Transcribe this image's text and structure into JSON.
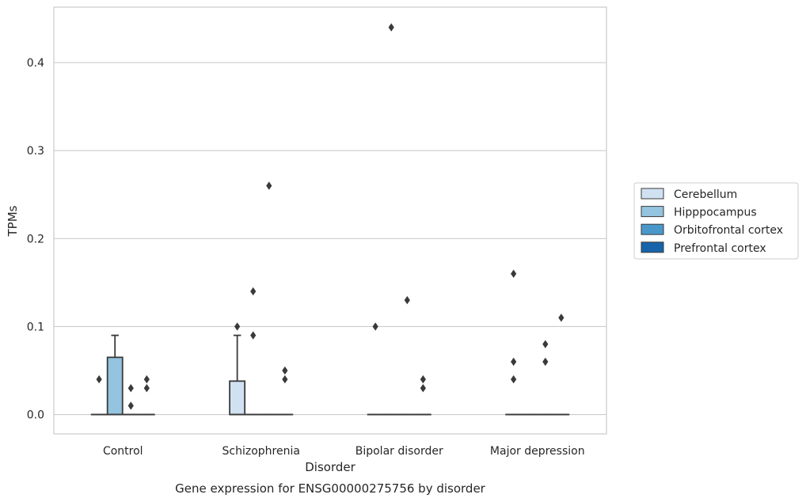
{
  "chart_data": {
    "type": "box",
    "title": "",
    "caption": "Gene expression for ENSG00000275756 by disorder",
    "xlabel": "Disorder",
    "ylabel": "TPMs",
    "ylim": [
      -0.022,
      0.463
    ],
    "yticks": [
      0.0,
      0.1,
      0.2,
      0.3,
      0.4
    ],
    "ytick_labels": [
      "0.0",
      "0.1",
      "0.2",
      "0.3",
      "0.4"
    ],
    "grid": "horizontal",
    "legend_position": "right",
    "categories": [
      "Control",
      "Schizophrenia",
      "Bipolar disorder",
      "Major depression"
    ],
    "series": [
      {
        "name": "Cerebellum",
        "color": "#d0e1f2",
        "boxes": [
          {
            "q1": 0,
            "median": 0,
            "q3": 0,
            "whisker_low": 0,
            "whisker_high": 0,
            "outliers": [
              0.04
            ]
          },
          {
            "q1": 0,
            "median": 0,
            "q3": 0.038,
            "whisker_low": 0,
            "whisker_high": 0.09,
            "outliers": [
              0.1
            ]
          },
          {
            "q1": 0,
            "median": 0,
            "q3": 0,
            "whisker_low": 0,
            "whisker_high": 0,
            "outliers": [
              0.1
            ]
          },
          {
            "q1": 0,
            "median": 0,
            "q3": 0,
            "whisker_low": 0,
            "whisker_high": 0,
            "outliers": [
              0.04,
              0.06,
              0.16
            ]
          }
        ]
      },
      {
        "name": "Hipppocampus",
        "color": "#94c4df",
        "boxes": [
          {
            "q1": 0,
            "median": 0,
            "q3": 0.065,
            "whisker_low": 0,
            "whisker_high": 0.09,
            "outliers": []
          },
          {
            "q1": 0,
            "median": 0,
            "q3": 0,
            "whisker_low": 0,
            "whisker_high": 0,
            "outliers": [
              0.09,
              0.14
            ]
          },
          {
            "q1": 0,
            "median": 0,
            "q3": 0,
            "whisker_low": 0,
            "whisker_high": 0,
            "outliers": [
              0.44
            ]
          },
          {
            "q1": 0,
            "median": 0,
            "q3": 0,
            "whisker_low": 0,
            "whisker_high": 0,
            "outliers": []
          }
        ]
      },
      {
        "name": "Orbitofrontal cortex",
        "color": "#4a98c9",
        "boxes": [
          {
            "q1": 0,
            "median": 0,
            "q3": 0,
            "whisker_low": 0,
            "whisker_high": 0,
            "outliers": [
              0.01,
              0.03
            ]
          },
          {
            "q1": 0,
            "median": 0,
            "q3": 0,
            "whisker_low": 0,
            "whisker_high": 0,
            "outliers": [
              0.26
            ]
          },
          {
            "q1": 0,
            "median": 0,
            "q3": 0,
            "whisker_low": 0,
            "whisker_high": 0,
            "outliers": [
              0.13
            ]
          },
          {
            "q1": 0,
            "median": 0,
            "q3": 0,
            "whisker_low": 0,
            "whisker_high": 0,
            "outliers": [
              0.06,
              0.08
            ]
          }
        ]
      },
      {
        "name": "Prefrontal cortex",
        "color": "#1764ab",
        "boxes": [
          {
            "q1": 0,
            "median": 0,
            "q3": 0,
            "whisker_low": 0,
            "whisker_high": 0,
            "outliers": [
              0.03,
              0.04
            ]
          },
          {
            "q1": 0,
            "median": 0,
            "q3": 0,
            "whisker_low": 0,
            "whisker_high": 0,
            "outliers": [
              0.04,
              0.05
            ]
          },
          {
            "q1": 0,
            "median": 0,
            "q3": 0,
            "whisker_low": 0,
            "whisker_high": 0,
            "outliers": [
              0.03,
              0.04
            ]
          },
          {
            "q1": 0,
            "median": 0,
            "q3": 0,
            "whisker_low": 0,
            "whisker_high": 0,
            "outliers": [
              0.11
            ]
          }
        ]
      }
    ]
  }
}
